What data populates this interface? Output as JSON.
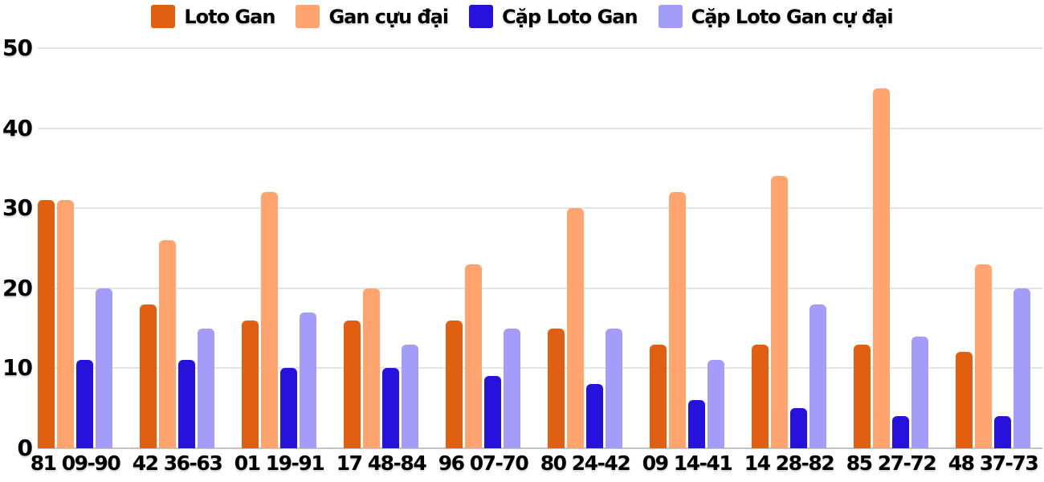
{
  "chart_data": {
    "type": "bar",
    "title": "",
    "categories": [
      "81 09-90",
      "42 36-63",
      "01 19-91",
      "17 48-84",
      "96 07-70",
      "80 24-42",
      "09 14-41",
      "14 28-82",
      "85 27-72",
      "48 37-73"
    ],
    "series": [
      {
        "name": "Loto Gan",
        "color": "#e05f10",
        "values": [
          31,
          18,
          16,
          16,
          16,
          15,
          13,
          13,
          13,
          12
        ]
      },
      {
        "name": "Gan cựu đại",
        "color": "#ffa46e",
        "values": [
          31,
          26,
          32,
          20,
          23,
          30,
          32,
          34,
          45,
          23
        ]
      },
      {
        "name": "Cặp Loto Gan",
        "color": "#2612dc",
        "values": [
          11,
          11,
          10,
          10,
          9,
          8,
          6,
          5,
          4,
          4
        ]
      },
      {
        "name": "Cặp Loto Gan cự đại",
        "color": "#a39cf9",
        "values": [
          20,
          15,
          17,
          13,
          15,
          15,
          11,
          18,
          14,
          20
        ]
      }
    ],
    "ylim": [
      0,
      50
    ],
    "yticks": [
      0,
      10,
      20,
      30,
      40,
      50
    ],
    "grid": "horizontal",
    "legend_position": "top",
    "xlabel": "",
    "ylabel": ""
  },
  "colors": {
    "background": "#ffffff",
    "gridline": "#e4e4e4",
    "baseline": "#c3c3c3",
    "text": "#000000"
  }
}
